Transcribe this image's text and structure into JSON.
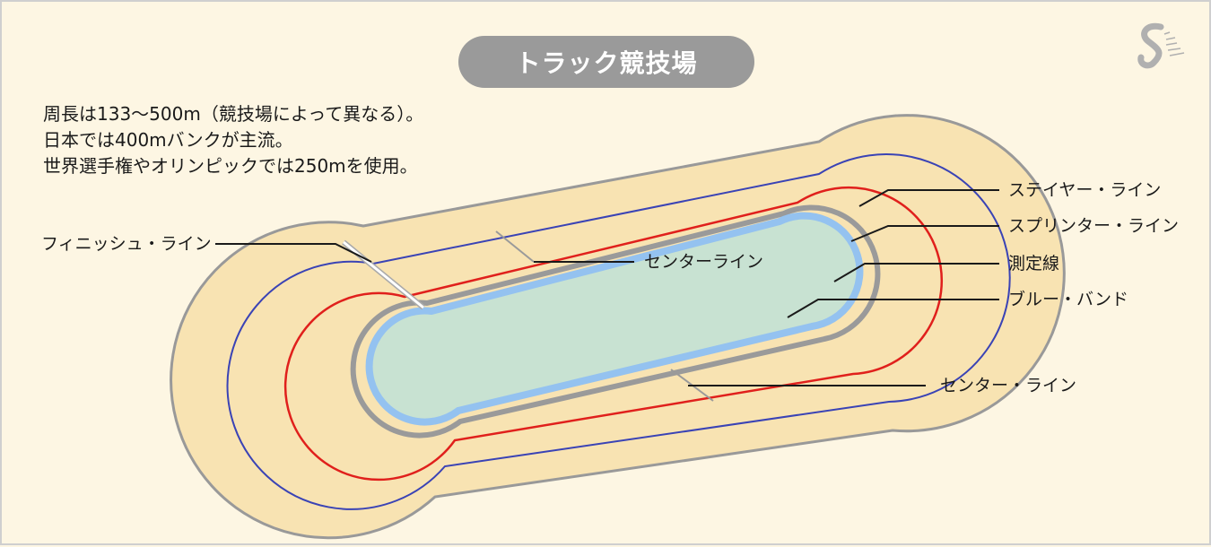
{
  "title": "トラック競技場",
  "description": [
    "周長は133～500m（競技場によって異なる）。",
    "日本では400mバンクが主流。",
    "世界選手権やオリンピックでは250mを使用。"
  ],
  "labels": {
    "finish_line": "フィニッシュ・ライン",
    "center_line_inner": "センターライン",
    "stayer_line": "ステイヤー・ライン",
    "sprinter_line": "スプリンター・ライン",
    "measurement_line": "測定線",
    "blue_band": "ブルー・バンド",
    "center_line_outer": "センター・ライン"
  },
  "colors": {
    "background": "#fdf6e3",
    "track_surface": "#f8e3b2",
    "infield": "#c8e2d2",
    "blue_band": "#94c2f0",
    "measurement_line": "#9a9a9a",
    "sprinter_line": "#e0201c",
    "stayer_line": "#3a43b5",
    "title_pill": "#9a9a9a"
  }
}
